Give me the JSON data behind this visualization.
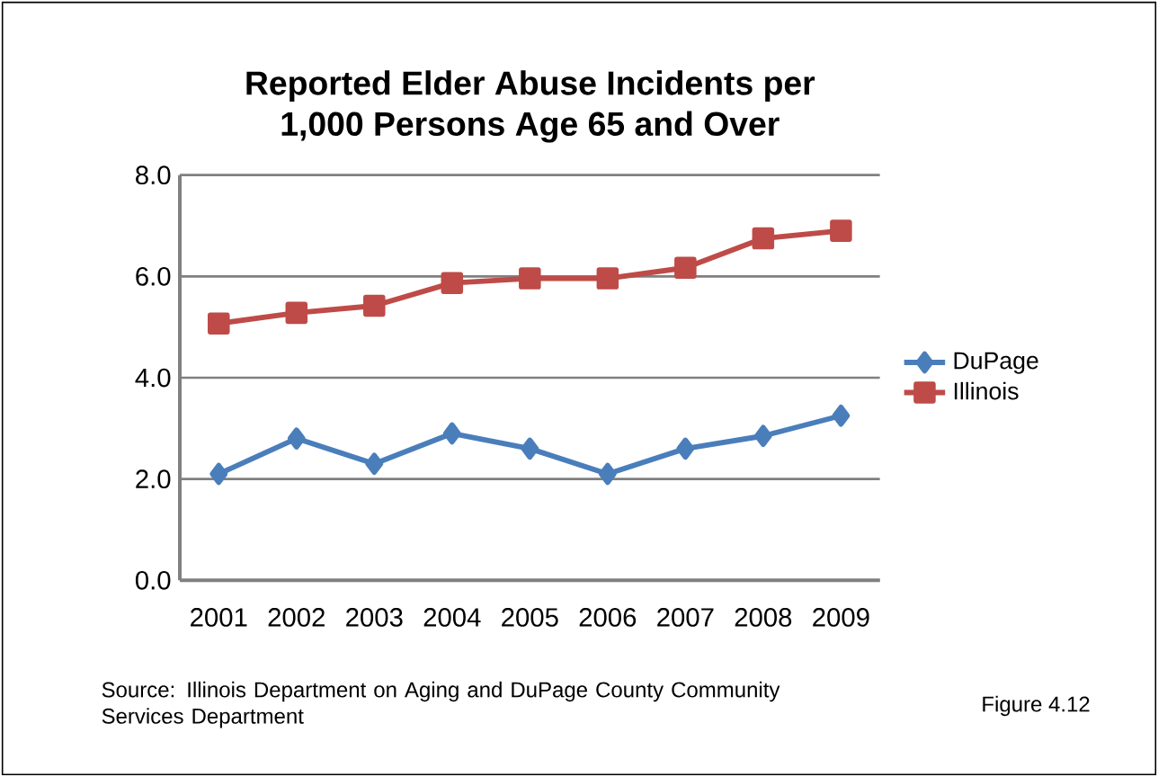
{
  "chart_data": {
    "type": "line",
    "title": "Reported Elder Abuse Incidents per 1,000 Persons Age 65 and Over",
    "categories": [
      "2001",
      "2002",
      "2003",
      "2004",
      "2005",
      "2006",
      "2007",
      "2008",
      "2009"
    ],
    "series": [
      {
        "name": "DuPage",
        "color": "#4a7ebb",
        "marker": "diamond",
        "values": [
          2.1,
          2.8,
          2.3,
          2.9,
          2.6,
          2.1,
          2.6,
          2.85,
          3.25
        ]
      },
      {
        "name": "Illinois",
        "color": "#be4b48",
        "marker": "square",
        "values": [
          5.07,
          5.28,
          5.42,
          5.87,
          5.96,
          5.96,
          6.17,
          6.75,
          6.9
        ]
      }
    ],
    "ylim": [
      0,
      8
    ],
    "yticks": [
      {
        "value": 0,
        "label": "0.0"
      },
      {
        "value": 2,
        "label": "2.0"
      },
      {
        "value": 4,
        "label": "4.0"
      },
      {
        "value": 6,
        "label": "6.0"
      },
      {
        "value": 8,
        "label": "8.0"
      }
    ],
    "grid": "y",
    "legend": "right",
    "annotations": [
      "Source:  Illinois Department on Aging and DuPage County Community Services Department",
      "Figure 4.12"
    ]
  }
}
